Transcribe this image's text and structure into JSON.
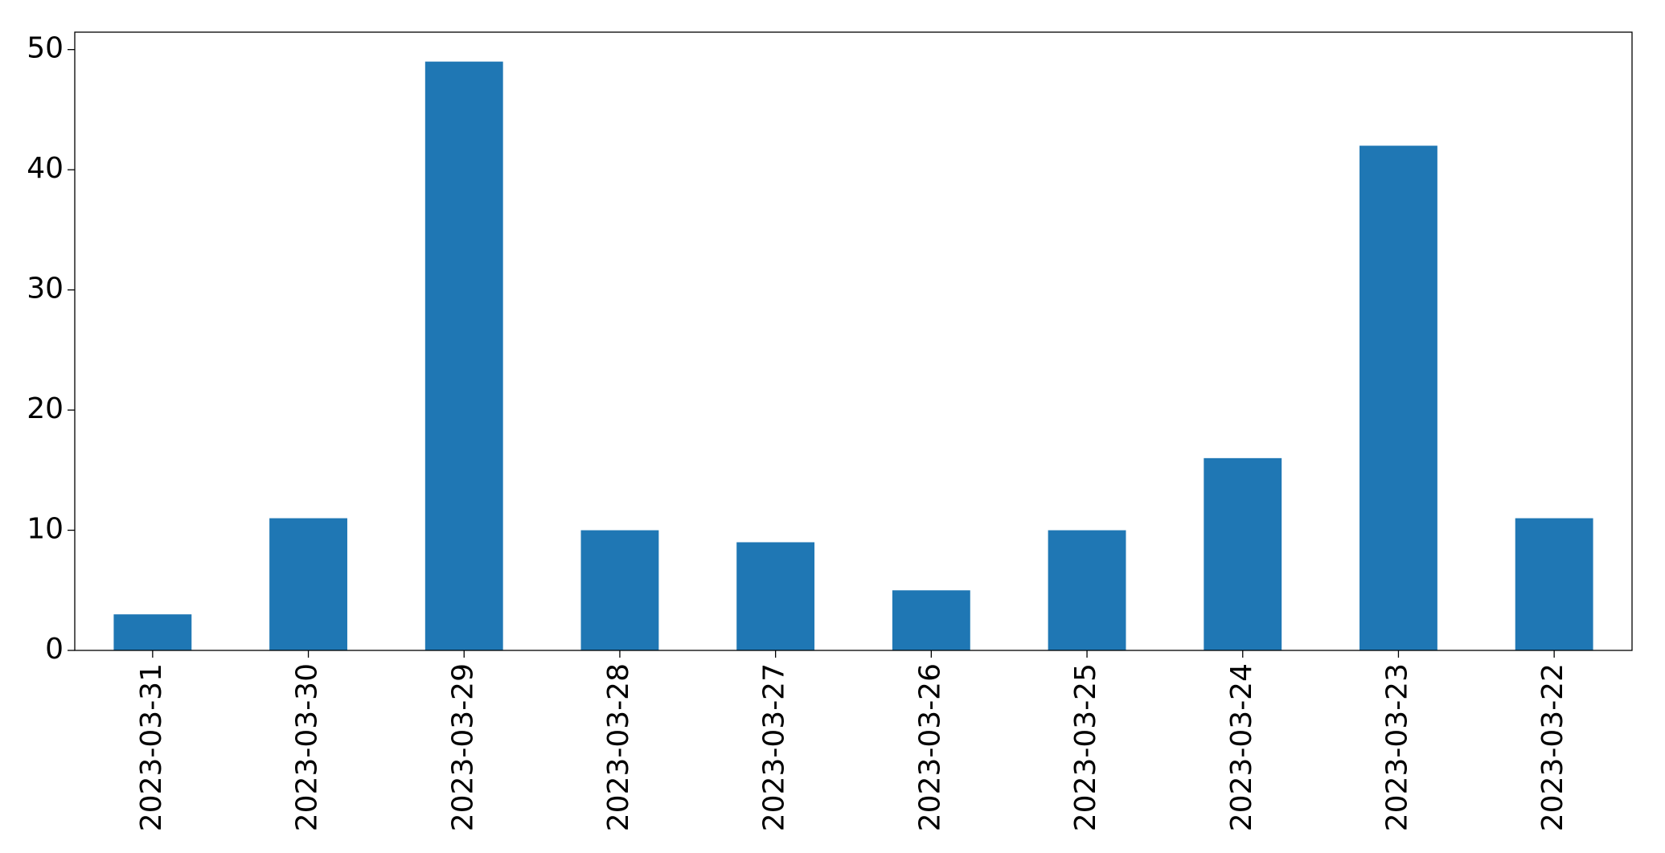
{
  "chart_data": {
    "type": "bar",
    "categories": [
      "2023-03-31",
      "2023-03-30",
      "2023-03-29",
      "2023-03-28",
      "2023-03-27",
      "2023-03-26",
      "2023-03-25",
      "2023-03-24",
      "2023-03-23",
      "2023-03-22"
    ],
    "values": [
      3,
      11,
      49,
      10,
      9,
      5,
      10,
      16,
      42,
      11
    ],
    "color": "#1f77b4",
    "ylim": [
      0,
      51.45
    ],
    "yticks": [
      0,
      10,
      20,
      30,
      40,
      50
    ],
    "grid": false
  }
}
